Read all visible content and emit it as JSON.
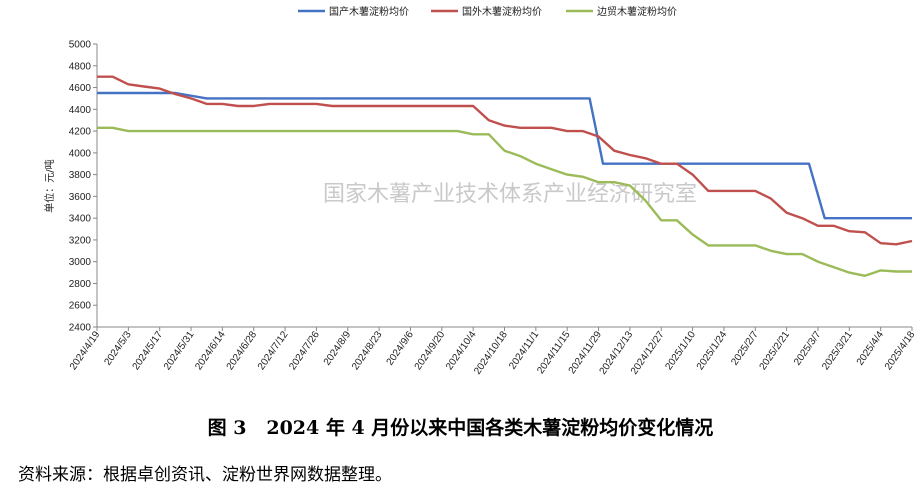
{
  "figure": {
    "caption": "图 3   2024 年 4 月份以来中国各类木薯淀粉均价变化情况",
    "source": "资料来源：根据卓创资讯、淀粉世界网数据整理。",
    "watermark": "国家木薯产业技术体系产业经济研究室"
  },
  "chart_data": {
    "type": "line",
    "ylabel": "单位：元/吨",
    "ylim": [
      2400,
      5000
    ],
    "yticks": [
      2400,
      2600,
      2800,
      3000,
      3200,
      3400,
      3600,
      3800,
      4000,
      4200,
      4400,
      4600,
      4800,
      5000
    ],
    "xticks": [
      "2024/4/19",
      "2024/5/3",
      "2024/5/17",
      "2024/5/31",
      "2024/6/14",
      "2024/6/28",
      "2024/7/12",
      "2024/7/26",
      "2024/8/9",
      "2024/8/23",
      "2024/9/6",
      "2024/9/20",
      "2024/10/4",
      "2024/10/18",
      "2024/11/1",
      "2024/11/15",
      "2024/11/29",
      "2024/12/13",
      "2024/12/27",
      "2025/1/10",
      "2025/1/24",
      "2025/2/7",
      "2025/2/21",
      "2025/3/7",
      "2025/3/21",
      "2025/4/4",
      "2025/4/18"
    ],
    "legend_position": "top",
    "grid": false,
    "series": [
      {
        "name": "国产木薯淀粉均价",
        "color": "#4472c4",
        "points": [
          [
            "2024/4/19",
            4550
          ],
          [
            "2024/5/24",
            4550
          ],
          [
            "2024/6/7",
            4500
          ],
          [
            "2024/11/25",
            4500
          ],
          [
            "2024/12/1",
            3900
          ],
          [
            "2025/3/3",
            3900
          ],
          [
            "2025/3/10",
            3400
          ],
          [
            "2025/4/18",
            3400
          ]
        ]
      },
      {
        "name": "国外木薯淀粉均价",
        "color": "#c0504d",
        "points": [
          [
            "2024/4/19",
            4700
          ],
          [
            "2024/4/26",
            4700
          ],
          [
            "2024/5/3",
            4630
          ],
          [
            "2024/5/10",
            4610
          ],
          [
            "2024/5/17",
            4590
          ],
          [
            "2024/5/24",
            4540
          ],
          [
            "2024/5/31",
            4500
          ],
          [
            "2024/6/7",
            4450
          ],
          [
            "2024/6/14",
            4450
          ],
          [
            "2024/6/21",
            4430
          ],
          [
            "2024/6/28",
            4430
          ],
          [
            "2024/7/5",
            4450
          ],
          [
            "2024/7/26",
            4450
          ],
          [
            "2024/8/2",
            4430
          ],
          [
            "2024/10/4",
            4430
          ],
          [
            "2024/10/11",
            4300
          ],
          [
            "2024/10/18",
            4250
          ],
          [
            "2024/10/25",
            4230
          ],
          [
            "2024/11/8",
            4230
          ],
          [
            "2024/11/15",
            4200
          ],
          [
            "2024/11/22",
            4200
          ],
          [
            "2024/11/29",
            4150
          ],
          [
            "2024/12/6",
            4020
          ],
          [
            "2024/12/13",
            3980
          ],
          [
            "2024/12/20",
            3950
          ],
          [
            "2024/12/27",
            3900
          ],
          [
            "2025/1/3",
            3900
          ],
          [
            "2025/1/10",
            3800
          ],
          [
            "2025/1/17",
            3650
          ],
          [
            "2025/2/7",
            3650
          ],
          [
            "2025/2/14",
            3580
          ],
          [
            "2025/2/21",
            3450
          ],
          [
            "2025/2/28",
            3400
          ],
          [
            "2025/3/7",
            3330
          ],
          [
            "2025/3/14",
            3330
          ],
          [
            "2025/3/21",
            3280
          ],
          [
            "2025/3/28",
            3270
          ],
          [
            "2025/4/4",
            3170
          ],
          [
            "2025/4/11",
            3160
          ],
          [
            "2025/4/18",
            3190
          ]
        ]
      },
      {
        "name": "边贸木薯淀粉均价",
        "color": "#9bbb59",
        "points": [
          [
            "2024/4/19",
            4230
          ],
          [
            "2024/4/26",
            4230
          ],
          [
            "2024/5/3",
            4200
          ],
          [
            "2024/9/27",
            4200
          ],
          [
            "2024/10/4",
            4170
          ],
          [
            "2024/10/11",
            4170
          ],
          [
            "2024/10/18",
            4020
          ],
          [
            "2024/10/25",
            3970
          ],
          [
            "2024/11/1",
            3900
          ],
          [
            "2024/11/8",
            3850
          ],
          [
            "2024/11/15",
            3800
          ],
          [
            "2024/11/22",
            3780
          ],
          [
            "2024/11/29",
            3730
          ],
          [
            "2024/12/6",
            3730
          ],
          [
            "2024/12/13",
            3700
          ],
          [
            "2024/12/20",
            3560
          ],
          [
            "2024/12/27",
            3380
          ],
          [
            "2025/1/3",
            3380
          ],
          [
            "2025/1/10",
            3250
          ],
          [
            "2025/1/17",
            3150
          ],
          [
            "2025/2/7",
            3150
          ],
          [
            "2025/2/14",
            3100
          ],
          [
            "2025/2/21",
            3070
          ],
          [
            "2025/2/28",
            3070
          ],
          [
            "2025/3/7",
            3000
          ],
          [
            "2025/3/14",
            2950
          ],
          [
            "2025/3/21",
            2900
          ],
          [
            "2025/3/28",
            2870
          ],
          [
            "2025/4/4",
            2920
          ],
          [
            "2025/4/11",
            2910
          ],
          [
            "2025/4/18",
            2910
          ]
        ]
      }
    ]
  }
}
